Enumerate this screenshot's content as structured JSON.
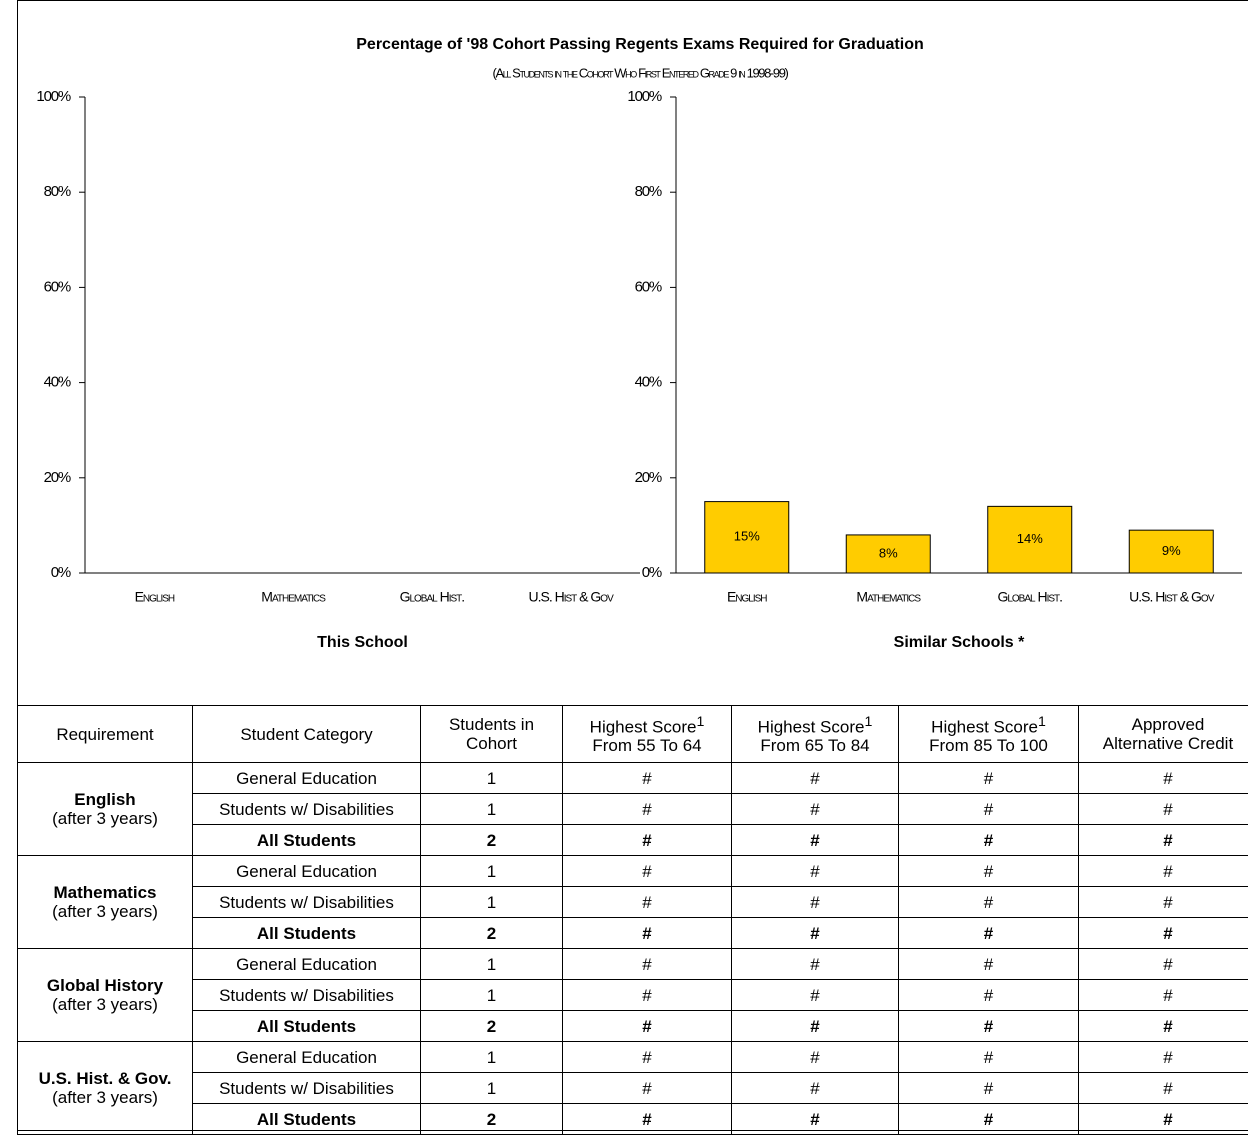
{
  "header": {
    "title": "Percentage of '98 Cohort Passing Regents Exams Required for Graduation",
    "subtitle": "(All Students in the Cohort Who First Entered Grade 9 in 1998-99)"
  },
  "chart_data": [
    {
      "type": "bar",
      "xlabel": "This School",
      "categories": [
        "English",
        "Mathematics",
        "Global Hist.",
        "U.S. Hist & Gov"
      ],
      "values": [
        null,
        null,
        null,
        null
      ],
      "ylim": [
        0,
        100
      ],
      "yticks": [
        {
          "value": 0,
          "label": "0%"
        },
        {
          "value": 20,
          "label": "20%"
        },
        {
          "value": 40,
          "label": "40%"
        },
        {
          "value": 60,
          "label": "60%"
        },
        {
          "value": 80,
          "label": "80%"
        },
        {
          "value": 100,
          "label": "100%"
        }
      ]
    },
    {
      "type": "bar",
      "xlabel": "Similar Schools *",
      "color": "#ffcc00",
      "categories": [
        "English",
        "Mathematics",
        "Global Hist.",
        "U.S. Hist & Gov"
      ],
      "values": [
        15,
        8,
        14,
        9
      ],
      "value_labels": [
        "15%",
        "8%",
        "14%",
        "9%"
      ],
      "ylim": [
        0,
        100
      ],
      "yticks": [
        {
          "value": 0,
          "label": "0%"
        },
        {
          "value": 20,
          "label": "20%"
        },
        {
          "value": 40,
          "label": "40%"
        },
        {
          "value": 60,
          "label": "60%"
        },
        {
          "value": 80,
          "label": "80%"
        },
        {
          "value": 100,
          "label": "100%"
        }
      ]
    }
  ],
  "table": {
    "header": [
      {
        "text": "Requirement"
      },
      {
        "text": "Student Category"
      },
      {
        "text": "Students in",
        "sub": "Cohort"
      },
      {
        "text": "Highest Score",
        "sup": "1",
        "sub": "From 55 To 64"
      },
      {
        "text": "Highest Score",
        "sup": "1",
        "sub": "From 65 To 84"
      },
      {
        "text": "Highest Score",
        "sup": "1",
        "sub": "From 85 To 100"
      },
      {
        "text": "Approved",
        "sub": "Alternative  Credit"
      }
    ],
    "groups": [
      {
        "requirement": "English",
        "note": "(after 3 years)",
        "rows": [
          [
            "General Education",
            1,
            "#",
            "#",
            "#",
            "#"
          ],
          [
            "Students w/ Disabilities",
            1,
            "#",
            "#",
            "#",
            "#"
          ],
          [
            "All Students",
            2,
            "#",
            "#",
            "#",
            "#"
          ]
        ]
      },
      {
        "requirement": "Mathematics",
        "note": "(after 3 years)",
        "rows": [
          [
            "General Education",
            1,
            "#",
            "#",
            "#",
            "#"
          ],
          [
            "Students w/ Disabilities",
            1,
            "#",
            "#",
            "#",
            "#"
          ],
          [
            "All Students",
            2,
            "#",
            "#",
            "#",
            "#"
          ]
        ]
      },
      {
        "requirement": "Global History",
        "note": "(after 3 years)",
        "rows": [
          [
            "General Education",
            1,
            "#",
            "#",
            "#",
            "#"
          ],
          [
            "Students w/ Disabilities",
            1,
            "#",
            "#",
            "#",
            "#"
          ],
          [
            "All Students",
            2,
            "#",
            "#",
            "#",
            "#"
          ]
        ]
      },
      {
        "requirement": "U.S. Hist. & Gov.",
        "note": "(after 3 years)",
        "rows": [
          [
            "General Education",
            1,
            "#",
            "#",
            "#",
            "#"
          ],
          [
            "Students w/ Disabilities",
            1,
            "#",
            "#",
            "#",
            "#"
          ],
          [
            "All Students",
            2,
            "#",
            "#",
            "#",
            "#"
          ]
        ]
      }
    ]
  }
}
